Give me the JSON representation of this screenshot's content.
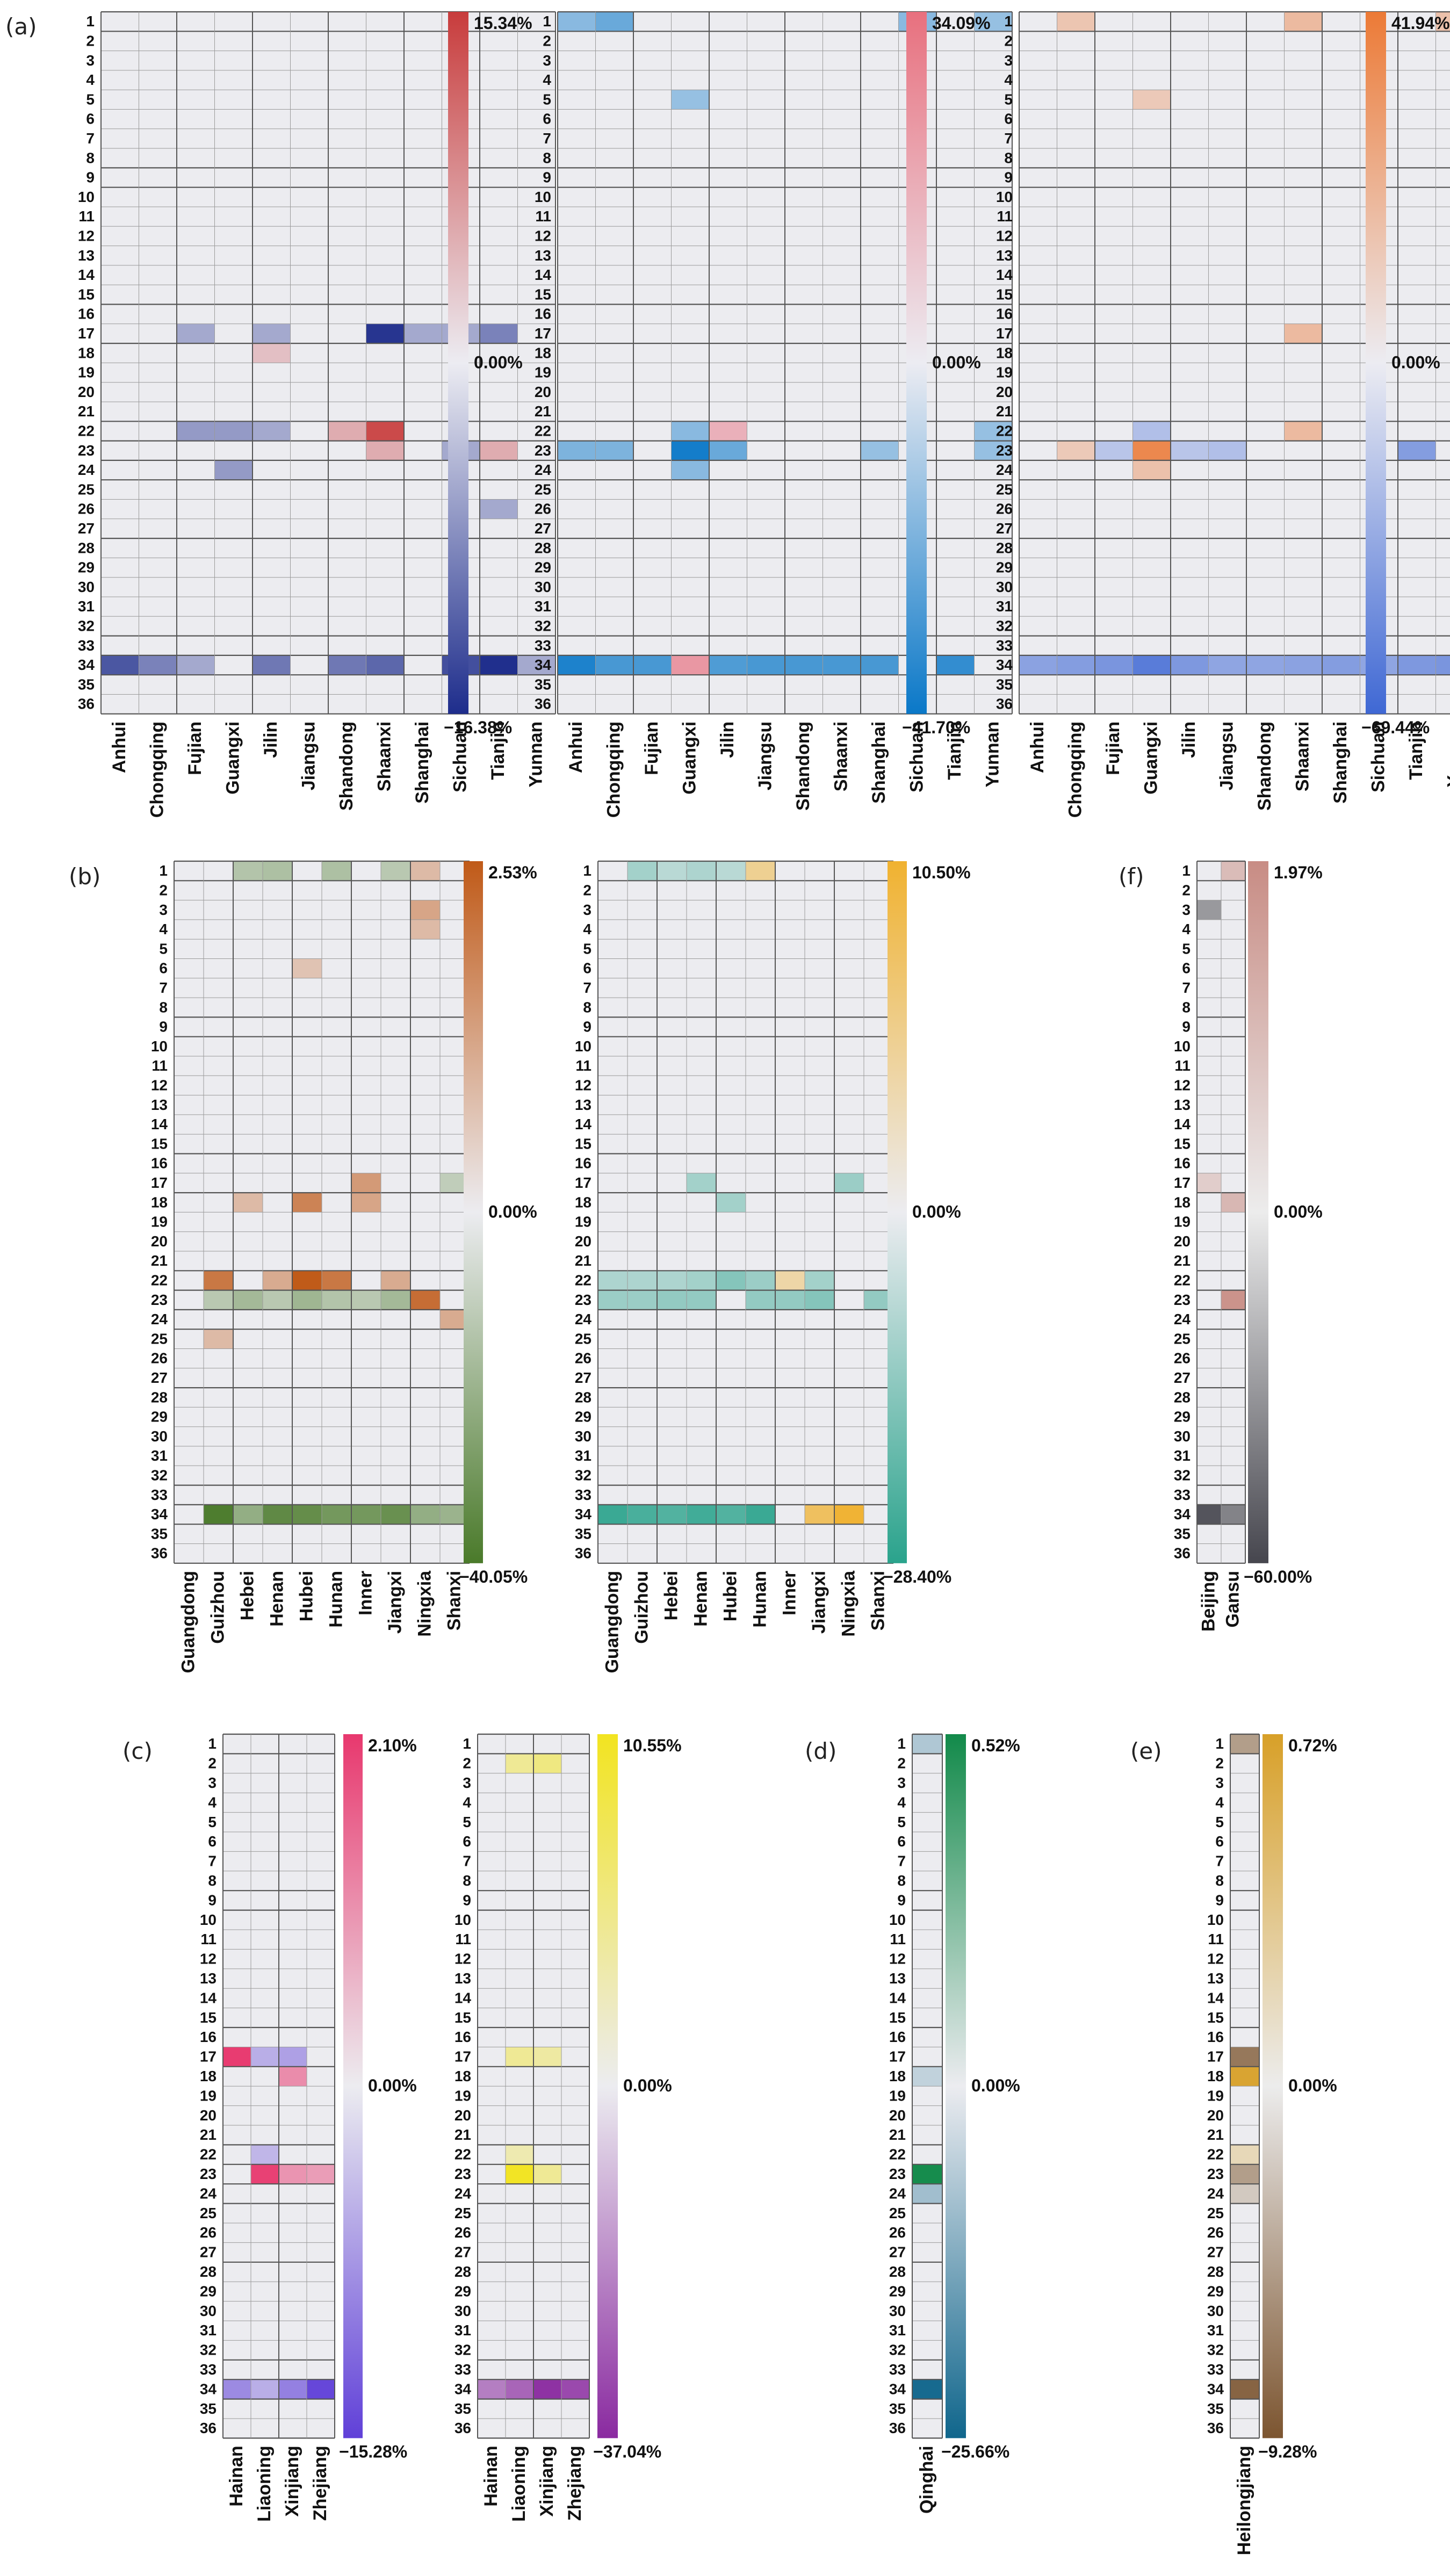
{
  "chart_data": [
    {
      "id": "a1",
      "panel_label": "(a)",
      "type": "heatmap",
      "rows": 36,
      "columns": [
        "Anhui",
        "Chongqing",
        "Fujian",
        "Guangxi",
        "Jilin",
        "Jiangsu",
        "Shandong",
        "Shaanxi",
        "Shanghai",
        "Sichuan",
        "Tianjin",
        "Yunnan"
      ],
      "scale": {
        "max": 15.34,
        "min": -16.38,
        "max_label": "15.34%",
        "mid_label": "0.00%",
        "min_label": "−16.38%",
        "colors": [
          "#1e2d8c",
          "#ececf2",
          "#c83c3c"
        ]
      },
      "cells": [
        [
          17,
          8,
          -15
        ],
        [
          17,
          11,
          -5
        ],
        [
          17,
          3,
          -2
        ],
        [
          17,
          5,
          -2
        ],
        [
          17,
          9,
          -2
        ],
        [
          17,
          10,
          -2
        ],
        [
          22,
          8,
          13
        ],
        [
          22,
          3,
          -3
        ],
        [
          22,
          4,
          -3
        ],
        [
          22,
          5,
          -2
        ],
        [
          22,
          7,
          2
        ],
        [
          23,
          8,
          2
        ],
        [
          23,
          11,
          2
        ],
        [
          23,
          10,
          -2
        ],
        [
          24,
          4,
          -3
        ],
        [
          26,
          11,
          -2
        ],
        [
          18,
          5,
          1
        ],
        [
          34,
          1,
          -10
        ],
        [
          34,
          2,
          -5
        ],
        [
          34,
          3,
          -2
        ],
        [
          34,
          5,
          -6
        ],
        [
          34,
          7,
          -6
        ],
        [
          34,
          8,
          -8
        ],
        [
          34,
          10,
          -11
        ],
        [
          34,
          11,
          -16
        ],
        [
          34,
          12,
          -2
        ]
      ]
    },
    {
      "id": "a2",
      "type": "heatmap",
      "rows": 36,
      "columns": [
        "Anhui",
        "Chongqing",
        "Fujian",
        "Guangxi",
        "Jilin",
        "Jiangsu",
        "Shandong",
        "Shaanxi",
        "Shanghai",
        "Sichuan",
        "Tianjin",
        "Yunnan"
      ],
      "scale": {
        "max": 34.09,
        "min": -41.7,
        "max_label": "34.09%",
        "mid_label": "0.00%",
        "min_label": "−41.70%",
        "colors": [
          "#0a78c8",
          "#ececf2",
          "#e8707e"
        ]
      },
      "cells": [
        [
          1,
          1,
          -8
        ],
        [
          1,
          2,
          -14
        ],
        [
          1,
          10,
          -8
        ],
        [
          1,
          12,
          -6
        ],
        [
          5,
          4,
          -6
        ],
        [
          22,
          4,
          -8
        ],
        [
          22,
          5,
          8
        ],
        [
          22,
          12,
          -6
        ],
        [
          23,
          1,
          -10
        ],
        [
          23,
          2,
          -10
        ],
        [
          23,
          4,
          -38
        ],
        [
          23,
          5,
          -14
        ],
        [
          23,
          9,
          -6
        ],
        [
          23,
          12,
          -6
        ],
        [
          24,
          4,
          -8
        ],
        [
          34,
          1,
          -35
        ],
        [
          34,
          2,
          -22
        ],
        [
          34,
          3,
          -22
        ],
        [
          34,
          4,
          16
        ],
        [
          34,
          5,
          -20
        ],
        [
          34,
          6,
          -22
        ],
        [
          34,
          7,
          -22
        ],
        [
          34,
          8,
          -22
        ],
        [
          34,
          9,
          -22
        ],
        [
          34,
          11,
          -28
        ]
      ]
    },
    {
      "id": "a3",
      "type": "heatmap",
      "rows": 36,
      "columns": [
        "Anhui",
        "Chongqing",
        "Fujian",
        "Guangxi",
        "Jilin",
        "Jiangsu",
        "Shandong",
        "Shaanxi",
        "Shanghai",
        "Sichuan",
        "Tianjin",
        "Yunnan"
      ],
      "scale": {
        "max": 41.94,
        "min": -69.44,
        "max_label": "41.94%",
        "mid_label": "0.00%",
        "min_label": "−69.44%",
        "colors": [
          "#3f68d4",
          "#ececf2",
          "#ec7a36"
        ]
      },
      "cells": [
        [
          1,
          2,
          5
        ],
        [
          1,
          8,
          8
        ],
        [
          1,
          12,
          6
        ],
        [
          5,
          4,
          4
        ],
        [
          17,
          8,
          8
        ],
        [
          22,
          8,
          8
        ],
        [
          22,
          4,
          -8
        ],
        [
          23,
          4,
          32
        ],
        [
          23,
          11,
          -25
        ],
        [
          23,
          2,
          4
        ],
        [
          23,
          3,
          -6
        ],
        [
          23,
          5,
          -6
        ],
        [
          23,
          6,
          -8
        ],
        [
          24,
          4,
          6
        ],
        [
          34,
          1,
          -22
        ],
        [
          34,
          2,
          -25
        ],
        [
          34,
          3,
          -30
        ],
        [
          34,
          4,
          -50
        ],
        [
          34,
          5,
          -28
        ],
        [
          34,
          6,
          -20
        ],
        [
          34,
          7,
          -20
        ],
        [
          34,
          8,
          -22
        ],
        [
          34,
          9,
          -25
        ],
        [
          34,
          10,
          -20
        ],
        [
          34,
          11,
          -28
        ],
        [
          34,
          12,
          -30
        ]
      ]
    },
    {
      "id": "b1",
      "panel_label": "(b)",
      "type": "heatmap",
      "rows": 36,
      "columns": [
        "Guangdong",
        "Guizhou",
        "Hebei",
        "Henan",
        "Hubei",
        "Hunan",
        "Inner",
        "Jiangxi",
        "Ningxia",
        "Shanxi"
      ],
      "scale": {
        "max": 2.53,
        "min": -40.05,
        "max_label": "2.53%",
        "mid_label": "0.00%",
        "min_label": "−40.05%",
        "colors": [
          "#4a7a2a",
          "#ececf0",
          "#c05a18"
        ]
      },
      "cells": [
        [
          1,
          3,
          -5
        ],
        [
          1,
          4,
          -6
        ],
        [
          1,
          6,
          -6
        ],
        [
          1,
          8,
          -4
        ],
        [
          1,
          9,
          0.3
        ],
        [
          3,
          9,
          0.6
        ],
        [
          4,
          9,
          0.3
        ],
        [
          6,
          5,
          0.2
        ],
        [
          17,
          7,
          0.8
        ],
        [
          17,
          10,
          -3
        ],
        [
          18,
          5,
          1.3
        ],
        [
          18,
          7,
          0.6
        ],
        [
          18,
          3,
          0.3
        ],
        [
          22,
          2,
          1.6
        ],
        [
          22,
          4,
          0.5
        ],
        [
          22,
          5,
          2.5
        ],
        [
          22,
          6,
          1.6
        ],
        [
          22,
          8,
          0.5
        ],
        [
          23,
          3,
          -8
        ],
        [
          23,
          5,
          -9
        ],
        [
          23,
          6,
          -5
        ],
        [
          23,
          8,
          -8
        ],
        [
          23,
          9,
          1.9
        ],
        [
          23,
          2,
          -4
        ],
        [
          23,
          4,
          -4
        ],
        [
          23,
          7,
          -4
        ],
        [
          24,
          10,
          0.5
        ],
        [
          25,
          2,
          0.3
        ],
        [
          34,
          2,
          -38
        ],
        [
          34,
          3,
          -12
        ],
        [
          34,
          4,
          -30
        ],
        [
          34,
          5,
          -28
        ],
        [
          34,
          6,
          -22
        ],
        [
          34,
          7,
          -22
        ],
        [
          34,
          8,
          -26
        ],
        [
          34,
          9,
          -12
        ],
        [
          34,
          10,
          -10
        ]
      ]
    },
    {
      "id": "b2",
      "type": "heatmap",
      "rows": 36,
      "columns": [
        "Guangdong",
        "Guizhou",
        "Hebei",
        "Henan",
        "Hubei",
        "Hunan",
        "Inner",
        "Jiangxi",
        "Ningxia",
        "Shanxi"
      ],
      "scale": {
        "max": 10.5,
        "min": -28.4,
        "max_label": "10.50%",
        "mid_label": "0.00%",
        "min_label": "−28.40%",
        "colors": [
          "#2aa38c",
          "#ececf0",
          "#f0b230"
        ]
      },
      "cells": [
        [
          1,
          2,
          -4
        ],
        [
          1,
          4,
          -3
        ],
        [
          1,
          6,
          2.5
        ],
        [
          1,
          3,
          -2
        ],
        [
          1,
          5,
          -2
        ],
        [
          17,
          4,
          -4
        ],
        [
          17,
          9,
          -5
        ],
        [
          18,
          5,
          -4
        ],
        [
          22,
          1,
          -3
        ],
        [
          22,
          2,
          -3
        ],
        [
          22,
          3,
          -3
        ],
        [
          22,
          4,
          -4
        ],
        [
          22,
          5,
          -8
        ],
        [
          22,
          6,
          -5
        ],
        [
          22,
          7,
          1.5
        ],
        [
          22,
          8,
          -4
        ],
        [
          23,
          1,
          -5
        ],
        [
          23,
          2,
          -5
        ],
        [
          23,
          3,
          -6
        ],
        [
          23,
          4,
          -6
        ],
        [
          23,
          6,
          -6
        ],
        [
          23,
          7,
          -6
        ],
        [
          23,
          8,
          -8
        ],
        [
          23,
          10,
          -6
        ],
        [
          34,
          1,
          -24
        ],
        [
          34,
          2,
          -20
        ],
        [
          34,
          3,
          -18
        ],
        [
          34,
          4,
          -22
        ],
        [
          34,
          5,
          -18
        ],
        [
          34,
          6,
          -24
        ],
        [
          34,
          8,
          6
        ],
        [
          34,
          9,
          10
        ]
      ]
    },
    {
      "id": "c1",
      "panel_label": "(c)",
      "type": "heatmap",
      "rows": 36,
      "columns": [
        "Hainan",
        "Liaoning",
        "Xinjiang",
        "Zhejiang"
      ],
      "scale": {
        "max": 2.1,
        "min": -15.28,
        "max_label": "2.10%",
        "mid_label": "0.00%",
        "min_label": "−15.28%",
        "colors": [
          "#6040d8",
          "#ececf0",
          "#e8386e"
        ]
      },
      "cells": [
        [
          17,
          1,
          2
        ],
        [
          17,
          2,
          -2
        ],
        [
          17,
          3,
          -3
        ],
        [
          18,
          3,
          0.6
        ],
        [
          22,
          2,
          -1.5
        ],
        [
          23,
          2,
          1.9
        ],
        [
          23,
          3,
          0.5
        ],
        [
          23,
          4,
          0.4
        ],
        [
          34,
          1,
          -5
        ],
        [
          34,
          2,
          -2
        ],
        [
          34,
          3,
          -6
        ],
        [
          34,
          4,
          -14
        ]
      ]
    },
    {
      "id": "c2",
      "type": "heatmap",
      "rows": 36,
      "columns": [
        "Hainan",
        "Liaoning",
        "Xinjiang",
        "Zhejiang"
      ],
      "scale": {
        "max": 10.55,
        "min": -37.04,
        "max_label": "10.55%",
        "mid_label": "0.00%",
        "min_label": "−37.04%",
        "colors": [
          "#8a2aa0",
          "#ececf0",
          "#f2e420"
        ]
      },
      "cells": [
        [
          2,
          2,
          2
        ],
        [
          2,
          3,
          3
        ],
        [
          17,
          2,
          2
        ],
        [
          17,
          3,
          1.5
        ],
        [
          22,
          2,
          1
        ],
        [
          23,
          2,
          10
        ],
        [
          23,
          3,
          2
        ],
        [
          34,
          1,
          -12
        ],
        [
          34,
          2,
          -18
        ],
        [
          34,
          3,
          -34
        ],
        [
          34,
          4,
          -26
        ]
      ]
    },
    {
      "id": "d",
      "panel_label": "(d)",
      "type": "heatmap",
      "rows": 36,
      "columns": [
        "Qinghai"
      ],
      "scale": {
        "max": 0.52,
        "min": -25.66,
        "max_label": "0.52%",
        "mid_label": "0.00%",
        "min_label": "−25.66%",
        "colors": [
          "#10668c",
          "#ececf0",
          "#128a4a"
        ]
      },
      "cells": [
        [
          1,
          1,
          -2
        ],
        [
          18,
          1,
          -1
        ],
        [
          23,
          1,
          0.5
        ],
        [
          24,
          1,
          -3
        ],
        [
          34,
          1,
          -24
        ]
      ]
    },
    {
      "id": "e",
      "panel_label": "(e)",
      "type": "heatmap",
      "rows": 36,
      "columns": [
        "Heilongjiang"
      ],
      "scale": {
        "max": 0.72,
        "min": -9.28,
        "max_label": "0.72%",
        "mid_label": "0.00%",
        "min_label": "−9.28%",
        "colors": [
          "#7c5530",
          "#ececec",
          "#d8a028"
        ]
      },
      "cells": [
        [
          1,
          1,
          -2.5
        ],
        [
          17,
          1,
          -5.5
        ],
        [
          18,
          1,
          0.65
        ],
        [
          22,
          1,
          0.05
        ],
        [
          23,
          1,
          -2.5
        ],
        [
          24,
          1,
          -0.5
        ],
        [
          34,
          1,
          -7.5
        ]
      ]
    },
    {
      "id": "f",
      "panel_label": "(f)",
      "type": "heatmap",
      "rows": 36,
      "columns": [
        "Beijing",
        "Gansu"
      ],
      "scale": {
        "max": 1.97,
        "min": -60,
        "max_label": "1.97%",
        "mid_label": "0.00%",
        "min_label": "−60.00%",
        "colors": [
          "#46464e",
          "#ececec",
          "#c88c84"
        ]
      },
      "cells": [
        [
          1,
          2,
          0.5
        ],
        [
          3,
          1,
          -15
        ],
        [
          17,
          1,
          0.2
        ],
        [
          18,
          2,
          0.6
        ],
        [
          23,
          2,
          1.7
        ],
        [
          34,
          1,
          -50
        ],
        [
          34,
          2,
          -24
        ]
      ]
    }
  ]
}
